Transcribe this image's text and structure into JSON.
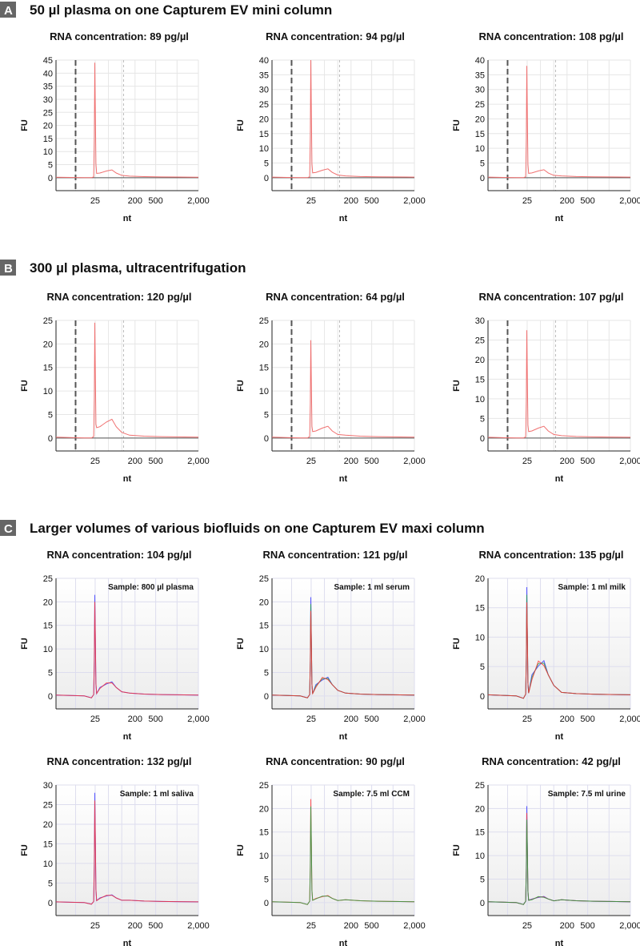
{
  "sections": [
    {
      "letter": "A",
      "title": "50 µl plasma on one Capturem EV mini column"
    },
    {
      "letter": "B",
      "title": "300 µl plasma, ultracentrifugation"
    },
    {
      "letter": "C",
      "title": "Larger volumes of various biofluids on one Capturem EV maxi column"
    }
  ],
  "colors": {
    "trace_ab": "#f07070",
    "baseline": "#555555",
    "red": "#ff3030",
    "blue": "#3030ff",
    "green": "#20a040",
    "section_box": "#666666"
  },
  "chart_data": [
    {
      "type": "line",
      "section": "A",
      "title": "RNA concentration: 89 pg/µl",
      "xlabel": "nt",
      "ylabel": "FU",
      "xticks": [
        "25",
        "200",
        "500",
        "2,000"
      ],
      "ylim": [
        0,
        45
      ],
      "grid": true,
      "peak": 44,
      "hump": 3,
      "series": [
        {
          "color": "trace_ab"
        }
      ]
    },
    {
      "type": "line",
      "section": "A",
      "title": "RNA concentration: 94 pg/µl",
      "xlabel": "nt",
      "ylabel": "FU",
      "xticks": [
        "25",
        "200",
        "500",
        "2,000"
      ],
      "ylim": [
        0,
        40
      ],
      "grid": true,
      "peak": 40,
      "hump": 3,
      "series": [
        {
          "color": "trace_ab"
        }
      ]
    },
    {
      "type": "line",
      "section": "A",
      "title": "RNA concentration: 108 pg/µl",
      "xlabel": "nt",
      "ylabel": "FU",
      "xticks": [
        "25",
        "200",
        "500",
        "2,000"
      ],
      "ylim": [
        0,
        40
      ],
      "grid": true,
      "peak": 38,
      "hump": 2.7,
      "series": [
        {
          "color": "trace_ab"
        }
      ]
    },
    {
      "type": "line",
      "section": "B",
      "title": "RNA concentration: 120 pg/µl",
      "xlabel": "nt",
      "ylabel": "FU",
      "xticks": [
        "25",
        "200",
        "500",
        "2,000"
      ],
      "ylim": [
        0,
        25
      ],
      "grid": true,
      "peak": 24.5,
      "hump": 4,
      "series": [
        {
          "color": "trace_ab"
        }
      ]
    },
    {
      "type": "line",
      "section": "B",
      "title": "RNA concentration: 64 pg/µl",
      "xlabel": "nt",
      "ylabel": "FU",
      "xticks": [
        "25",
        "200",
        "500",
        "2,000"
      ],
      "ylim": [
        0,
        25
      ],
      "grid": true,
      "peak": 20.8,
      "hump": 2.5,
      "series": [
        {
          "color": "trace_ab"
        }
      ]
    },
    {
      "type": "line",
      "section": "B",
      "title": "RNA concentration: 107 pg/µl",
      "xlabel": "nt",
      "ylabel": "FU",
      "xticks": [
        "25",
        "200",
        "500",
        "2,000"
      ],
      "ylim": [
        0,
        30
      ],
      "grid": true,
      "peak": 27.5,
      "hump": 3,
      "series": [
        {
          "color": "trace_ab"
        }
      ]
    },
    {
      "type": "line",
      "section": "C",
      "title": "RNA concentration: 104 pg/µl",
      "sample": "Sample: 800 µl plasma",
      "xlabel": "nt",
      "ylabel": "FU",
      "xticks": [
        "25",
        "200",
        "500",
        "2,000"
      ],
      "ylim": [
        0,
        25
      ],
      "grid": true,
      "peak": 21.5,
      "hump": 3,
      "series": [
        {
          "color": "blue"
        },
        {
          "color": "red"
        }
      ]
    },
    {
      "type": "line",
      "section": "C",
      "title": "RNA concentration: 121 pg/µl",
      "sample": "Sample: 1 ml serum",
      "xlabel": "nt",
      "ylabel": "FU",
      "xticks": [
        "25",
        "200",
        "500",
        "2,000"
      ],
      "ylim": [
        0,
        25
      ],
      "grid": true,
      "peak": 21,
      "hump": 4,
      "series": [
        {
          "color": "blue"
        },
        {
          "color": "green"
        },
        {
          "color": "red"
        }
      ]
    },
    {
      "type": "line",
      "section": "C",
      "title": "RNA concentration: 135 pg/µl",
      "sample": "Sample: 1 ml milk",
      "xlabel": "nt",
      "ylabel": "FU",
      "xticks": [
        "25",
        "200",
        "500",
        "2,000"
      ],
      "ylim": [
        0,
        20
      ],
      "grid": true,
      "peak": 18.5,
      "hump": 6,
      "series": [
        {
          "color": "blue"
        },
        {
          "color": "green"
        },
        {
          "color": "red"
        }
      ]
    },
    {
      "type": "line",
      "section": "C",
      "title": "RNA concentration: 132 pg/µl",
      "sample": "Sample: 1 ml saliva",
      "xlabel": "nt",
      "ylabel": "FU",
      "xticks": [
        "25",
        "200",
        "500",
        "2,000"
      ],
      "ylim": [
        0,
        30
      ],
      "grid": true,
      "peak": 28,
      "hump": 2,
      "series": [
        {
          "color": "blue"
        },
        {
          "color": "red"
        }
      ]
    },
    {
      "type": "line",
      "section": "C",
      "title": "RNA concentration: 90 pg/µl",
      "sample": "Sample: 7.5 ml CCM",
      "xlabel": "nt",
      "ylabel": "FU",
      "xticks": [
        "25",
        "200",
        "500",
        "2,000"
      ],
      "ylim": [
        0,
        25
      ],
      "grid": true,
      "peak": 22,
      "hump": 1.5,
      "series": [
        {
          "color": "red"
        },
        {
          "color": "green"
        }
      ]
    },
    {
      "type": "line",
      "section": "C",
      "title": "RNA concentration: 42 pg/µl",
      "sample": "Sample: 7.5 ml urine",
      "xlabel": "nt",
      "ylabel": "FU",
      "xticks": [
        "25",
        "200",
        "500",
        "2,000"
      ],
      "ylim": [
        0,
        25
      ],
      "grid": true,
      "peak": 20.5,
      "hump": 1.3,
      "series": [
        {
          "color": "blue"
        },
        {
          "color": "red"
        },
        {
          "color": "green"
        }
      ]
    }
  ]
}
